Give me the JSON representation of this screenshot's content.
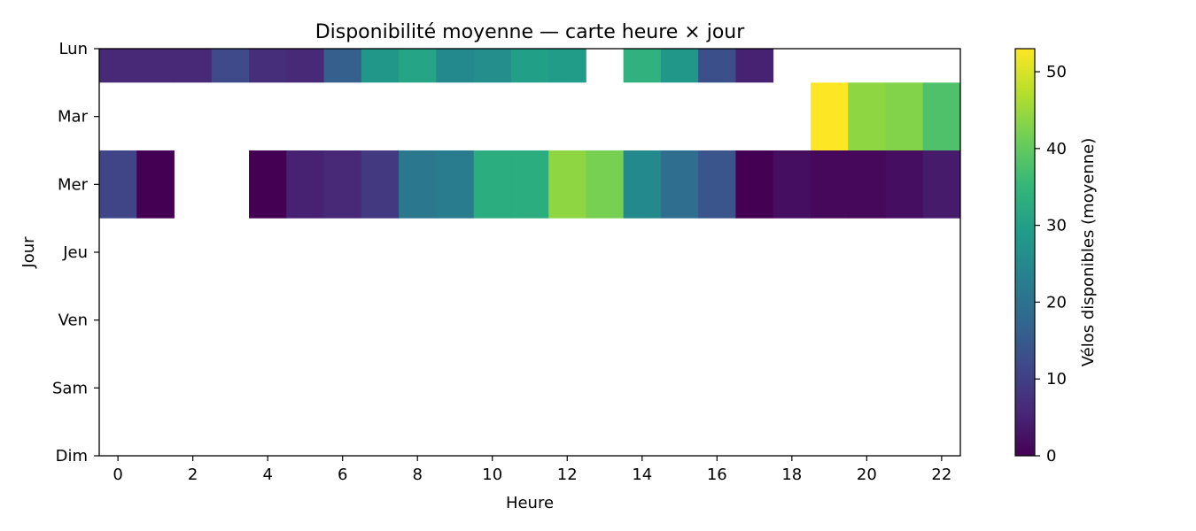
{
  "chart_data": {
    "type": "heatmap",
    "title": "Disponibilité moyenne — carte heure × jour",
    "xlabel": "Heure",
    "ylabel": "Jour",
    "x_ticks": [
      0,
      2,
      4,
      6,
      8,
      10,
      12,
      14,
      16,
      18,
      20,
      22
    ],
    "x_range": [
      -0.5,
      22.5
    ],
    "rows": [
      "Lun",
      "Mar",
      "Mer",
      "Jeu",
      "Ven",
      "Sam",
      "Dim"
    ],
    "colorbar": {
      "label": "Vélos disponibles (moyenne)",
      "min": 0,
      "max": 53,
      "ticks": [
        0,
        10,
        20,
        30,
        40,
        50
      ],
      "colormap": "viridis"
    },
    "cells": [
      {
        "day": "Lun",
        "hour": 0,
        "value": 6
      },
      {
        "day": "Lun",
        "hour": 1,
        "value": 6
      },
      {
        "day": "Lun",
        "hour": 2,
        "value": 6
      },
      {
        "day": "Lun",
        "hour": 3,
        "value": 12
      },
      {
        "day": "Lun",
        "hour": 4,
        "value": 7
      },
      {
        "day": "Lun",
        "hour": 5,
        "value": 6
      },
      {
        "day": "Lun",
        "hour": 6,
        "value": 16
      },
      {
        "day": "Lun",
        "hour": 7,
        "value": 28
      },
      {
        "day": "Lun",
        "hour": 8,
        "value": 31
      },
      {
        "day": "Lun",
        "hour": 9,
        "value": 25
      },
      {
        "day": "Lun",
        "hour": 10,
        "value": 26
      },
      {
        "day": "Lun",
        "hour": 11,
        "value": 30
      },
      {
        "day": "Lun",
        "hour": 12,
        "value": 29
      },
      {
        "day": "Lun",
        "hour": 14,
        "value": 34
      },
      {
        "day": "Lun",
        "hour": 15,
        "value": 28
      },
      {
        "day": "Lun",
        "hour": 16,
        "value": 13
      },
      {
        "day": "Lun",
        "hour": 17,
        "value": 5
      },
      {
        "day": "Mar",
        "hour": 19,
        "value": 53
      },
      {
        "day": "Mar",
        "hour": 20,
        "value": 44
      },
      {
        "day": "Mar",
        "hour": 21,
        "value": 43
      },
      {
        "day": "Mar",
        "hour": 22,
        "value": 38
      },
      {
        "day": "Mer",
        "hour": 0,
        "value": 11
      },
      {
        "day": "Mer",
        "hour": 1,
        "value": 0
      },
      {
        "day": "Mer",
        "hour": 4,
        "value": 0
      },
      {
        "day": "Mer",
        "hour": 5,
        "value": 5
      },
      {
        "day": "Mer",
        "hour": 6,
        "value": 6
      },
      {
        "day": "Mer",
        "hour": 7,
        "value": 9
      },
      {
        "day": "Mer",
        "hour": 8,
        "value": 21
      },
      {
        "day": "Mer",
        "hour": 9,
        "value": 22
      },
      {
        "day": "Mer",
        "hour": 10,
        "value": 33
      },
      {
        "day": "Mer",
        "hour": 11,
        "value": 33
      },
      {
        "day": "Mer",
        "hour": 12,
        "value": 44
      },
      {
        "day": "Mer",
        "hour": 13,
        "value": 42
      },
      {
        "day": "Mer",
        "hour": 14,
        "value": 25
      },
      {
        "day": "Mer",
        "hour": 15,
        "value": 19
      },
      {
        "day": "Mer",
        "hour": 16,
        "value": 14
      },
      {
        "day": "Mer",
        "hour": 17,
        "value": 0
      },
      {
        "day": "Mer",
        "hour": 18,
        "value": 2
      },
      {
        "day": "Mer",
        "hour": 19,
        "value": 1
      },
      {
        "day": "Mer",
        "hour": 20,
        "value": 1
      },
      {
        "day": "Mer",
        "hour": 21,
        "value": 2
      },
      {
        "day": "Mer",
        "hour": 22,
        "value": 4
      }
    ]
  }
}
